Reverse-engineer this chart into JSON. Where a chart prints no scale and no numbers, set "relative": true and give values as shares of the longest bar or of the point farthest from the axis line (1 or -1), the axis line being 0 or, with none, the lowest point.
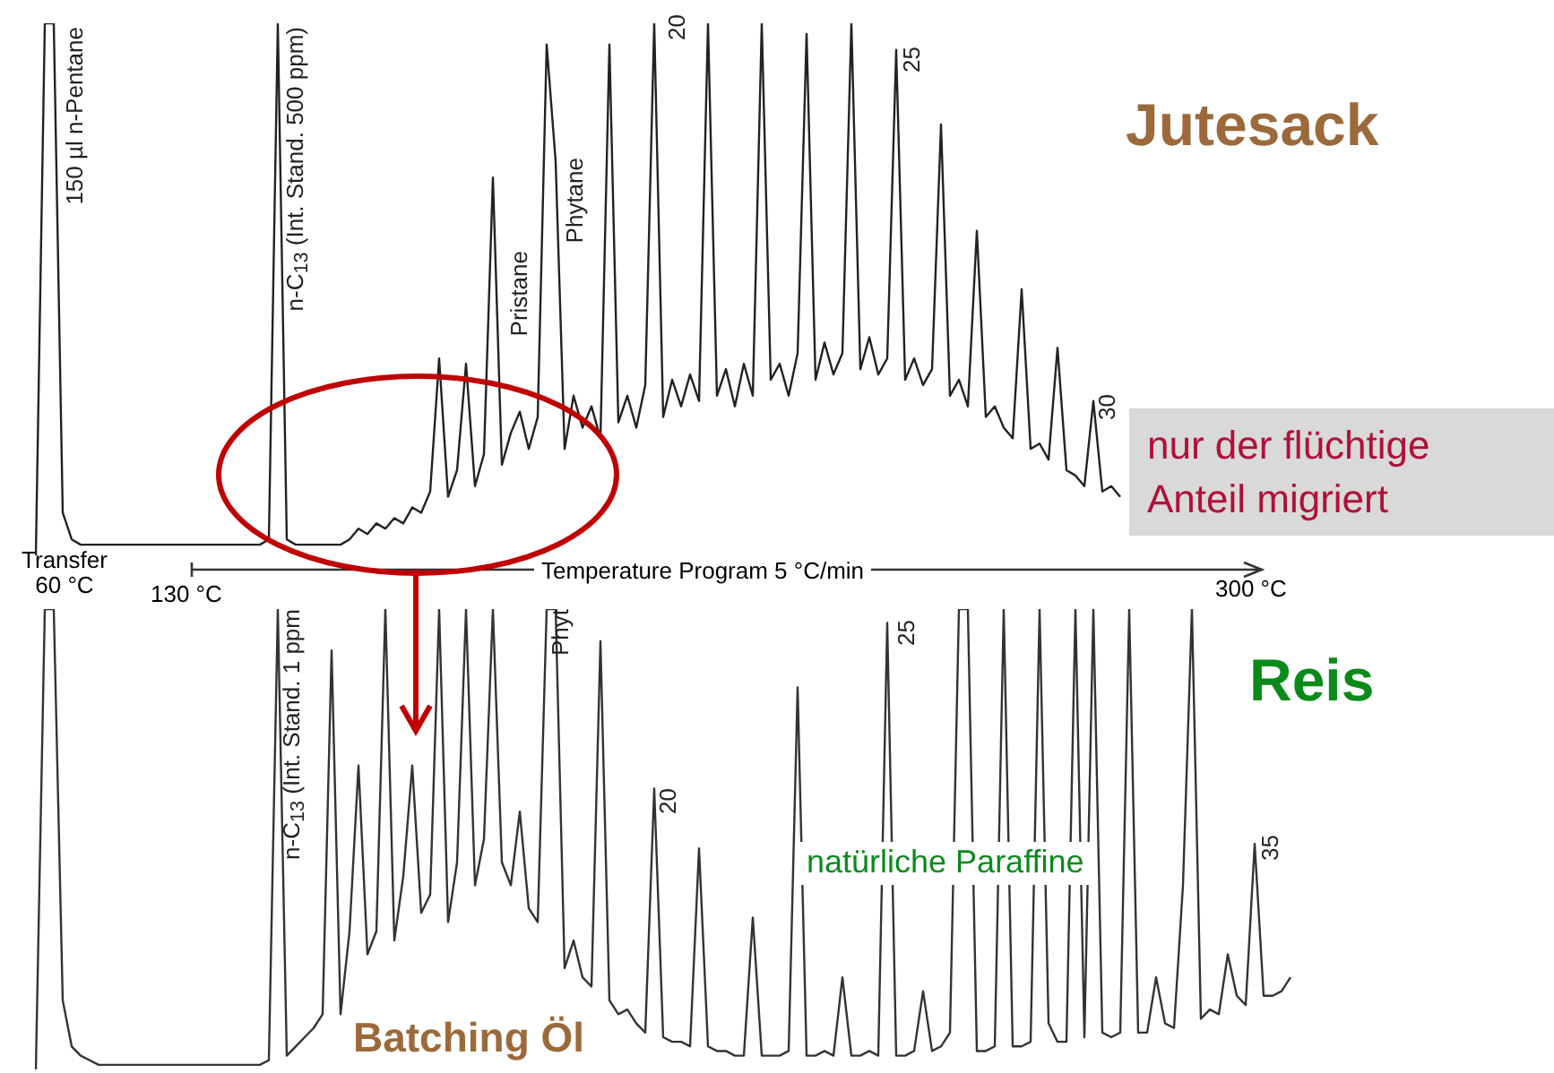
{
  "chart_data": [
    {
      "type": "line",
      "title": "Jutesack",
      "relative": true,
      "tick_labels": false,
      "legend": false,
      "marker": "none",
      "line_style": "solid",
      "categories": [
        null,
        null,
        null,
        null,
        null,
        null,
        null,
        null,
        null,
        null,
        null,
        null,
        null,
        null,
        null,
        null,
        null,
        null,
        null,
        null,
        null,
        null,
        null,
        null,
        null,
        null,
        null,
        null,
        null,
        null,
        null,
        null,
        null,
        null,
        null,
        null,
        null,
        null,
        null,
        null,
        null,
        null,
        null,
        null,
        null,
        null,
        null,
        null,
        null,
        null,
        null,
        null,
        null,
        null,
        null,
        null,
        null,
        null,
        null,
        null,
        null,
        null,
        null,
        null,
        null,
        null,
        null,
        null,
        null,
        null,
        null,
        null,
        null,
        null,
        null,
        null,
        null,
        null,
        null,
        null,
        null,
        null,
        null,
        null,
        null,
        null,
        null,
        null,
        null,
        null,
        null,
        null,
        null,
        null,
        null,
        null,
        null,
        null,
        null,
        null,
        null,
        null,
        null,
        null,
        null,
        null,
        null,
        null,
        null,
        null,
        null,
        null,
        null,
        null,
        null,
        null,
        null,
        null,
        null,
        null,
        null,
        null
      ],
      "series": [
        {
          "color": "#222222",
          "values": [
            0,
            1,
            1,
            0.08,
            0.03,
            0.02,
            0.02,
            0.02,
            0.02,
            0.02,
            0.02,
            0.02,
            0.02,
            0.02,
            0.02,
            0.02,
            0.02,
            0.02,
            0.02,
            0.02,
            0.02,
            0.02,
            0.02,
            0.02,
            0.02,
            0.02,
            0.03,
            1,
            0.03,
            0.02,
            0.02,
            0.02,
            0.02,
            0.02,
            0.02,
            0.03,
            0.05,
            0.04,
            0.06,
            0.05,
            0.07,
            0.06,
            0.09,
            0.08,
            0.12,
            0.37,
            0.11,
            0.16,
            0.36,
            0.13,
            0.19,
            0.71,
            0.17,
            0.23,
            0.27,
            0.2,
            0.26,
            0.96,
            0.74,
            0.2,
            0.3,
            0.24,
            0.28,
            0.22,
            0.96,
            0.25,
            0.3,
            0.24,
            0.32,
            1,
            0.26,
            0.33,
            0.28,
            0.34,
            0.29,
            1,
            0.3,
            0.35,
            0.28,
            0.36,
            0.3,
            1,
            0.33,
            0.36,
            0.3,
            0.38,
            0.98,
            0.33,
            0.4,
            0.34,
            0.38,
            1,
            0.35,
            0.41,
            0.34,
            0.37,
            0.95,
            0.33,
            0.37,
            0.32,
            0.35,
            0.81,
            0.3,
            0.33,
            0.28,
            0.61,
            0.26,
            0.28,
            0.24,
            0.22,
            0.5,
            0.2,
            0.21,
            0.18,
            0.39,
            0.16,
            0.15,
            0.13,
            0.29,
            0.12,
            0.13,
            0.11
          ]
        }
      ],
      "annotations": [
        "150 µl n-Pentane",
        "n-C$_{13}$ (Int. Stand. 500 ppm)",
        "Pristane",
        "Phytane",
        "20",
        "25",
        "30",
        "nur der flüchtige Anteil migriert",
        "Transfer 60 °C",
        "130 °C",
        "Temperature Program 5 °C/min",
        "300 °C"
      ]
    },
    {
      "type": "line",
      "title": "Reis",
      "relative": true,
      "tick_labels": false,
      "legend": false,
      "marker": "none",
      "line_style": "solid",
      "categories": [
        null,
        null,
        null,
        null,
        null,
        null,
        null,
        null,
        null,
        null,
        null,
        null,
        null,
        null,
        null,
        null,
        null,
        null,
        null,
        null,
        null,
        null,
        null,
        null,
        null,
        null,
        null,
        null,
        null,
        null,
        null,
        null,
        null,
        null,
        null,
        null,
        null,
        null,
        null,
        null,
        null,
        null,
        null,
        null,
        null,
        null,
        null,
        null,
        null,
        null,
        null,
        null,
        null,
        null,
        null,
        null,
        null,
        null,
        null,
        null,
        null,
        null,
        null,
        null,
        null,
        null,
        null,
        null,
        null,
        null,
        null,
        null,
        null,
        null,
        null,
        null,
        null,
        null,
        null,
        null,
        null,
        null,
        null,
        null,
        null,
        null,
        null,
        null,
        null,
        null,
        null,
        null,
        null,
        null,
        null,
        null,
        null,
        null,
        null,
        null,
        null,
        null,
        null,
        null,
        null,
        null,
        null,
        null,
        null,
        null,
        null,
        null,
        null,
        null,
        null,
        null,
        null,
        null,
        null,
        null,
        null,
        null,
        null,
        null,
        null,
        null,
        null,
        null,
        null,
        null,
        null,
        null,
        null,
        null,
        null,
        null,
        null,
        null,
        null,
        null,
        null
      ],
      "series": [
        {
          "color": "#333333",
          "values": [
            0,
            1,
            1,
            0.15,
            0.05,
            0.03,
            0.02,
            0.01,
            0.01,
            0.01,
            0.01,
            0.01,
            0.01,
            0.01,
            0.01,
            0.01,
            0.01,
            0.01,
            0.01,
            0.01,
            0.01,
            0.01,
            0.01,
            0.01,
            0.01,
            0.01,
            0.02,
            1,
            0.03,
            0.05,
            0.07,
            0.09,
            0.12,
            0.91,
            0.12,
            0.3,
            0.66,
            0.25,
            0.3,
            1,
            0.28,
            0.42,
            0.66,
            0.34,
            0.38,
            1,
            0.32,
            0.45,
            1,
            0.4,
            0.5,
            1,
            0.45,
            0.4,
            0.56,
            0.35,
            0.32,
            1,
            1,
            0.22,
            0.28,
            0.2,
            0.18,
            0.93,
            0.15,
            0.12,
            0.13,
            0.1,
            0.08,
            0.61,
            0.07,
            0.06,
            0.06,
            0.05,
            0.48,
            0.05,
            0.04,
            0.04,
            0.03,
            0.03,
            0.33,
            0.03,
            0.03,
            0.03,
            0.04,
            0.83,
            0.03,
            0.03,
            0.04,
            0.03,
            0.2,
            0.03,
            0.03,
            0.04,
            0.03,
            0.97,
            0.03,
            0.03,
            0.04,
            0.17,
            0.04,
            0.05,
            0.08,
            1,
            1,
            0.04,
            0.04,
            0.05,
            1,
            0.05,
            0.05,
            0.06,
            1,
            0.1,
            0.06,
            0.06,
            1,
            0.07,
            1,
            0.08,
            0.07,
            0.08,
            1,
            0.08,
            0.08,
            0.2,
            0.1,
            0.09,
            0.4,
            1,
            0.11,
            0.13,
            0.12,
            0.25,
            0.16,
            0.14,
            0.49,
            0.16,
            0.16,
            0.17,
            0.2
          ]
        }
      ],
      "annotations": [
        "n-C$_{13}$ (Int. Stand. 1 ppm",
        "Phyt",
        "20",
        "25",
        "35",
        "natürliche Paraffine",
        "Batching Öl"
      ]
    }
  ]
}
